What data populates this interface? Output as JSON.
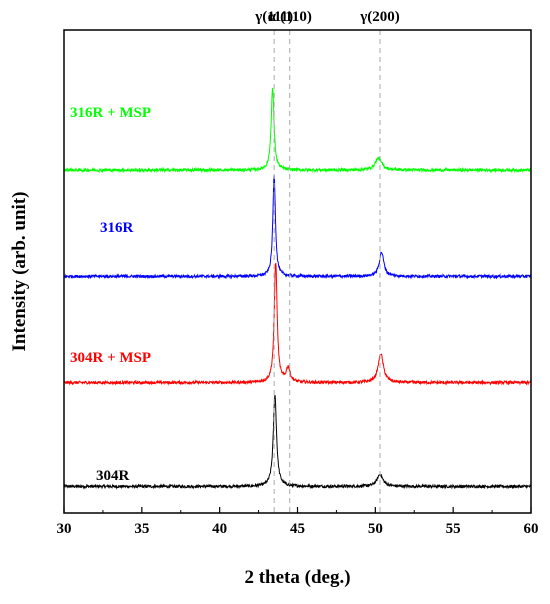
{
  "chart_data": {
    "type": "line",
    "title": "",
    "xlabel": "2 theta (deg.)",
    "ylabel": "Intensity (arb. unit)",
    "xlim": [
      30,
      60
    ],
    "xticks": [
      30,
      35,
      40,
      45,
      50,
      55,
      60
    ],
    "ylim": [
      0,
      1
    ],
    "yticks_shown": false,
    "grid": false,
    "legend": "none",
    "peak_markers": [
      {
        "label": "γ(111)",
        "x": 43.5
      },
      {
        "label": "α'(110)",
        "x": 44.5
      },
      {
        "label": "γ(200)",
        "x": 50.3
      }
    ],
    "series": [
      {
        "name": "304R",
        "color": "#000000",
        "baseline": 0.055,
        "noise": 0.003,
        "peaks": [
          {
            "x": 43.55,
            "height": 0.19,
            "width": 0.25
          },
          {
            "x": 50.3,
            "height": 0.025,
            "width": 0.45
          }
        ]
      },
      {
        "name": "304R + MSP",
        "color": "#ff0000",
        "baseline": 0.27,
        "noise": 0.003,
        "peaks": [
          {
            "x": 43.6,
            "height": 0.25,
            "width": 0.22
          },
          {
            "x": 44.4,
            "height": 0.03,
            "width": 0.3
          },
          {
            "x": 50.35,
            "height": 0.06,
            "width": 0.4
          }
        ]
      },
      {
        "name": "316R",
        "color": "#0000ff",
        "baseline": 0.49,
        "noise": 0.003,
        "peaks": [
          {
            "x": 43.5,
            "height": 0.21,
            "width": 0.2
          },
          {
            "x": 50.4,
            "height": 0.05,
            "width": 0.35
          }
        ]
      },
      {
        "name": "316R + MSP",
        "color": "#00ff00",
        "baseline": 0.71,
        "noise": 0.003,
        "peaks": [
          {
            "x": 43.4,
            "height": 0.17,
            "width": 0.22
          },
          {
            "x": 50.2,
            "height": 0.025,
            "width": 0.5
          }
        ]
      }
    ]
  }
}
